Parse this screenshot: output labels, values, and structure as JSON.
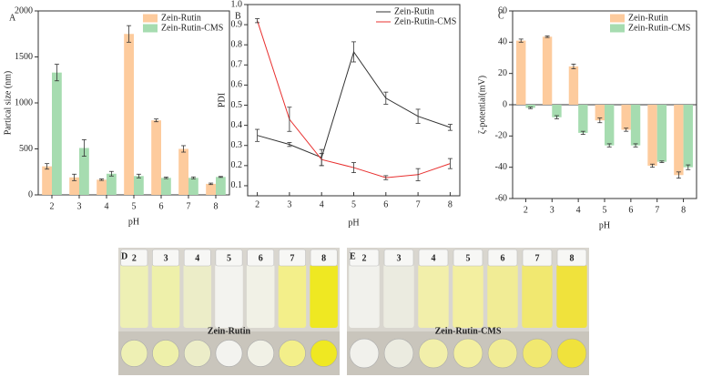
{
  "chart_data": [
    {
      "type": "bar",
      "panel": "A",
      "xlabel": "pH",
      "ylabel": "Partical size (nm)",
      "categories": [
        "2",
        "3",
        "4",
        "5",
        "6",
        "7",
        "8"
      ],
      "series": [
        {
          "name": "Zein-Rutin",
          "color": "#fdcb9d",
          "values": [
            310,
            190,
            165,
            1750,
            810,
            500,
            120
          ],
          "errors": [
            30,
            35,
            8,
            90,
            15,
            35,
            8
          ]
        },
        {
          "name": "Zein-Rutin-CMS",
          "color": "#a6dcb0",
          "values": [
            1330,
            510,
            230,
            205,
            185,
            185,
            195
          ],
          "errors": [
            90,
            90,
            25,
            20,
            8,
            10,
            5
          ]
        }
      ],
      "ylim": [
        0,
        2000
      ],
      "yticks": [
        0,
        500,
        1000,
        1500,
        2000
      ],
      "legend": "upper right"
    },
    {
      "type": "line",
      "panel": "B",
      "xlabel": "pH",
      "ylabel": "PDI",
      "x": [
        2,
        3,
        4,
        5,
        6,
        7,
        8
      ],
      "series": [
        {
          "name": "Zein-Rutin",
          "color": "#333333",
          "values": [
            0.35,
            0.305,
            0.24,
            0.765,
            0.535,
            0.445,
            0.39
          ],
          "errors": [
            0.03,
            0.01,
            0.04,
            0.05,
            0.03,
            0.035,
            0.015
          ]
        },
        {
          "name": "Zein-Rutin-CMS",
          "color": "#e8302f",
          "values": [
            0.92,
            0.43,
            0.23,
            0.19,
            0.14,
            0.155,
            0.21
          ],
          "errors": [
            0.01,
            0.06,
            0.03,
            0.025,
            0.01,
            0.03,
            0.025
          ]
        }
      ],
      "xlim": [
        1.7,
        8.3
      ],
      "xticks": [
        2,
        3,
        4,
        5,
        6,
        7,
        8
      ],
      "ylim": [
        0.05,
        1.0
      ],
      "yticks": [
        0.1,
        0.2,
        0.3,
        0.4,
        0.5,
        0.6,
        0.7,
        0.8,
        0.9,
        {
          "value": 1.0,
          "label": "1.0"
        }
      ],
      "legend": "upper right"
    },
    {
      "type": "bar",
      "panel": "C",
      "xlabel": "pH",
      "ylabel": "ζ-potential(mV)",
      "categories": [
        "2",
        "3",
        "4",
        "5",
        "6",
        "7",
        "8"
      ],
      "series": [
        {
          "name": "Zein-Rutin",
          "color": "#fdcb9d",
          "values": [
            41,
            43.5,
            24.5,
            -10,
            -16,
            -39,
            -45
          ],
          "errors": [
            1,
            0.5,
            1.5,
            1.5,
            1,
            1,
            2
          ]
        },
        {
          "name": "Zein-Rutin-CMS",
          "color": "#a6dcb0",
          "values": [
            -2,
            -8,
            -18,
            -26,
            -26,
            -36.5,
            -40
          ],
          "errors": [
            0.5,
            1,
            1,
            1,
            1,
            0.5,
            1.5
          ]
        }
      ],
      "ylim": [
        -60,
        60
      ],
      "yticks": [
        -60,
        -40,
        -20,
        0,
        20,
        40,
        60
      ],
      "legend": "upper right"
    }
  ],
  "photos": [
    {
      "panel": "D",
      "tubes": [
        "2",
        "3",
        "4",
        "5",
        "6",
        "7",
        "8"
      ],
      "caption": "Zein-Rutin"
    },
    {
      "panel": "E",
      "tubes": [
        "2",
        "3",
        "4",
        "5",
        "6",
        "7",
        "8"
      ],
      "caption": "Zein-Rutin-CMS"
    }
  ]
}
